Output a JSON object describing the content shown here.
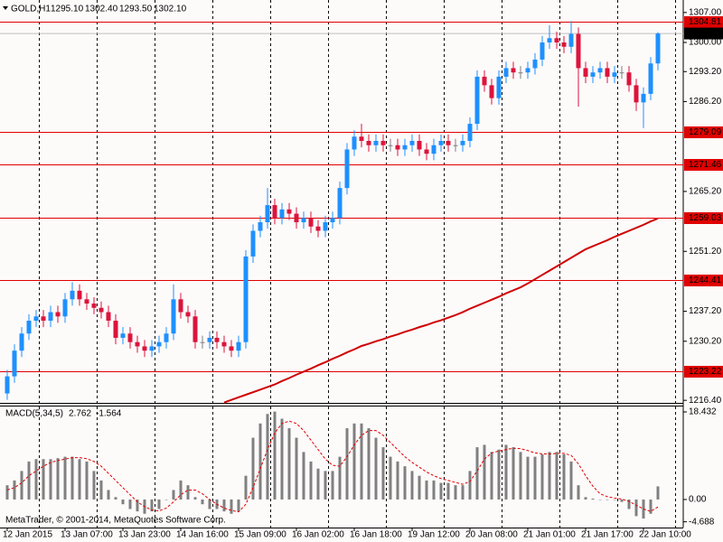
{
  "chart_data": [
    {
      "type": "candlestick",
      "title": "GOLD,H1",
      "title_values": [
        "1295.10",
        "1302.40",
        "1293.50",
        "1302.10"
      ],
      "categories": [
        "12 Jan 2015",
        null,
        null,
        null,
        null,
        null,
        null,
        null,
        "13 Jan 07:00",
        null,
        null,
        null,
        null,
        null,
        null,
        null,
        "13 Jan 23:00",
        null,
        null,
        null,
        null,
        null,
        null,
        null,
        "14 Jan 16:00",
        null,
        null,
        null,
        null,
        null,
        null,
        null,
        "15 Jan 09:00",
        null,
        null,
        null,
        null,
        null,
        null,
        null,
        "16 Jan 02:00",
        null,
        null,
        null,
        null,
        null,
        null,
        null,
        "16 Jan 18:00",
        null,
        null,
        null,
        null,
        null,
        null,
        null,
        "19 Jan 12:00",
        null,
        null,
        null,
        null,
        null,
        null,
        null,
        "20 Jan 08:00",
        null,
        null,
        null,
        null,
        null,
        null,
        null,
        "21 Jan 01:00",
        null,
        null,
        null,
        null,
        null,
        null,
        null,
        "21 Jan 17:00",
        null,
        null,
        null,
        null,
        null,
        null,
        null,
        "22 Jan 10:00",
        null,
        null
      ],
      "open": [
        1218,
        1222,
        1228,
        1232,
        1235,
        1236,
        1235,
        1237,
        1236,
        1240,
        1242,
        1240,
        1239,
        1238,
        1237,
        1235,
        1231,
        1232,
        1230,
        1229,
        1228,
        1229,
        1230,
        1232,
        1240,
        1237,
        1236,
        1230,
        1230,
        1231,
        1230,
        1229,
        1228,
        1230,
        1250,
        1256,
        1258,
        1262,
        1259,
        1261,
        1260,
        1258,
        1259,
        1257,
        1256,
        1258,
        1259,
        1266,
        1275,
        1278,
        1277,
        1276,
        1277,
        1276,
        1276,
        1275,
        1276,
        1277,
        1275,
        1274,
        1276,
        1277,
        1276,
        1276,
        1277,
        1281,
        1292,
        1290,
        1287,
        1292,
        1294,
        1293,
        1293,
        1294,
        1296,
        1300,
        1301,
        1300,
        1299,
        1302,
        1294,
        1292,
        1293,
        1294,
        1292,
        1293,
        1293,
        1290,
        1286,
        1288,
        1295.1
      ],
      "high": [
        1223.5,
        1229.5,
        1233.5,
        1236.5,
        1237.5,
        1237.5,
        1238.5,
        1238.5,
        1241.5,
        1244,
        1243.5,
        1241.5,
        1240.5,
        1239.5,
        1238.5,
        1236.5,
        1233.5,
        1233.5,
        1231.5,
        1230.5,
        1230.5,
        1231.5,
        1233.5,
        1243.5,
        1241.5,
        1238.5,
        1237.5,
        1231.5,
        1232.5,
        1232.5,
        1231.5,
        1230.5,
        1231.5,
        1251.5,
        1257.5,
        1259.5,
        1266,
        1263.5,
        1262.5,
        1262.5,
        1261.5,
        1260.5,
        1260.5,
        1258.5,
        1259.5,
        1260.5,
        1267.5,
        1276.5,
        1279.5,
        1281,
        1278.5,
        1278.5,
        1278.5,
        1277.5,
        1277.5,
        1277.5,
        1278.5,
        1278.5,
        1276.5,
        1277.5,
        1278.5,
        1278.5,
        1277.5,
        1278.5,
        1282.5,
        1293.5,
        1293.5,
        1291.5,
        1293.5,
        1295.5,
        1295.5,
        1294.5,
        1295.5,
        1297.5,
        1301.5,
        1304,
        1302.5,
        1301.5,
        1305,
        1303.5,
        1295.5,
        1294.5,
        1295.5,
        1295.5,
        1294.5,
        1294.5,
        1294.5,
        1291.5,
        1289.5,
        1296.6,
        1302.4
      ],
      "low": [
        1216.5,
        1220.5,
        1226.5,
        1230.5,
        1233.5,
        1233.5,
        1233.5,
        1234.5,
        1234.5,
        1238.5,
        1238.5,
        1237.5,
        1236.5,
        1235.5,
        1233.5,
        1229.5,
        1229.5,
        1228.5,
        1227.5,
        1226.5,
        1226.5,
        1227.5,
        1228.5,
        1230.5,
        1235.5,
        1234.5,
        1228.5,
        1228.5,
        1228.5,
        1228.5,
        1227.5,
        1226.5,
        1226.5,
        1228.5,
        1248.5,
        1254.5,
        1256.5,
        1257.5,
        1257.5,
        1258.5,
        1256.5,
        1256.5,
        1255.5,
        1254.5,
        1254.5,
        1256.5,
        1257.5,
        1264.5,
        1273.5,
        1275.5,
        1274.5,
        1274.5,
        1274.5,
        1274.5,
        1273.5,
        1273.5,
        1274.5,
        1273.5,
        1272.5,
        1272.5,
        1274.5,
        1274.5,
        1274.5,
        1274.5,
        1275.5,
        1279.5,
        1288.5,
        1285.5,
        1285.5,
        1290.5,
        1291.5,
        1291.5,
        1291.5,
        1292.5,
        1294.5,
        1298.5,
        1298.5,
        1297.5,
        1297.5,
        1285,
        1290.5,
        1290.5,
        1291.5,
        1290.5,
        1290.5,
        1291.5,
        1288.5,
        1284,
        1280,
        1286.5,
        1293.5
      ],
      "close": [
        1222,
        1228,
        1232,
        1235,
        1236,
        1235,
        1237,
        1236,
        1240,
        1242,
        1240,
        1239,
        1238,
        1237,
        1235,
        1231,
        1232,
        1230,
        1229,
        1228,
        1229,
        1230,
        1232,
        1240,
        1237,
        1236,
        1230,
        1230,
        1231,
        1230,
        1229,
        1228,
        1230,
        1250,
        1256,
        1258,
        1262,
        1259,
        1261,
        1260,
        1258,
        1259,
        1257,
        1256,
        1258,
        1259,
        1266,
        1275,
        1278,
        1277,
        1276,
        1277,
        1276,
        1276,
        1275,
        1276,
        1277,
        1275,
        1274,
        1276,
        1277,
        1276,
        1276,
        1277,
        1281,
        1292,
        1290,
        1287,
        1292,
        1294,
        1293,
        1293,
        1294,
        1296,
        1300,
        1301,
        1300,
        1299,
        1302,
        1294,
        1292,
        1293,
        1294,
        1292,
        1293,
        1293,
        1290,
        1286,
        1288,
        1295.1,
        1302.1
      ],
      "up_color": "#1e90ff",
      "down_color": "#dc143c",
      "ylim": [
        1215.8,
        1309.5
      ],
      "yticks": [
        {
          "value": 1307,
          "label": "1307.00"
        },
        {
          "value": 1300,
          "label": "1300.00"
        },
        {
          "value": 1293.2,
          "label": "1293.20"
        },
        {
          "value": 1286.2,
          "label": "1286.20"
        },
        {
          "value": 1265.2,
          "label": "1265.20"
        },
        {
          "value": 1251.2,
          "label": "1251.20"
        },
        {
          "value": 1237.2,
          "label": "1237.20"
        },
        {
          "value": 1230.2,
          "label": "1230.20"
        },
        {
          "value": 1216.4,
          "label": "1216.40"
        }
      ],
      "levels": [
        1304.81,
        1279.09,
        1271.46,
        1259.03,
        1244.41,
        1223.22
      ],
      "level_color": "#e00000",
      "current_price": {
        "value": 1302.1,
        "label": "1302.10"
      },
      "ma": {
        "color": "#d00000",
        "values": [
          null,
          null,
          null,
          null,
          null,
          null,
          null,
          null,
          null,
          null,
          null,
          null,
          null,
          null,
          null,
          null,
          null,
          null,
          null,
          null,
          null,
          null,
          null,
          null,
          null,
          null,
          null,
          null,
          null,
          null,
          1215.9,
          1216.5,
          1217.1,
          1217.7,
          1218.3,
          1218.9,
          1219.5,
          1220.1,
          1220.9,
          1221.6,
          1222.4,
          1223.1,
          1223.8,
          1224.6,
          1225.3,
          1226.1,
          1226.8,
          1227.6,
          1228.3,
          1229.1,
          1229.6,
          1230.2,
          1230.7,
          1231.3,
          1231.8,
          1232.4,
          1232.9,
          1233.5,
          1234.0,
          1234.6,
          1235.1,
          1235.7,
          1236.3,
          1237.0,
          1237.8,
          1238.5,
          1239.2,
          1239.9,
          1240.6,
          1241.4,
          1242.1,
          1242.8,
          1243.7,
          1244.7,
          1245.7,
          1246.7,
          1247.7,
          1248.7,
          1249.7,
          1250.7,
          1251.7,
          1252.4,
          1253.1,
          1253.8,
          1254.6,
          1255.3,
          1256.0,
          1256.7,
          1257.4,
          1258.2,
          1258.9
        ]
      }
    },
    {
      "type": "macd",
      "title": "MACD(5,34,5)",
      "footer": "MetaTrader, © 2001-2014, MetaQuotes Software Corp.",
      "series": [
        {
          "color": "#808080",
          "values": [
            3,
            4,
            6,
            8,
            8.5,
            8.5,
            8.5,
            8.7,
            9,
            9,
            8.5,
            8,
            6,
            4,
            2,
            0.5,
            -1,
            -2,
            -2.5,
            -3,
            -2.5,
            -2,
            0,
            2,
            4,
            3,
            0.5,
            -1,
            -2,
            -2,
            -2.5,
            -3,
            -2.5,
            5,
            13,
            16,
            18,
            18.5,
            17,
            15,
            13,
            10,
            8,
            6.5,
            6,
            6,
            9,
            15,
            16,
            16,
            15,
            13,
            11,
            9,
            8,
            7,
            6,
            5,
            4,
            4,
            3.5,
            3.5,
            3,
            3,
            6,
            11,
            11.5,
            10,
            10.5,
            11.5,
            11,
            10,
            9,
            9,
            9.5,
            10,
            10,
            9.5,
            8,
            3,
            0.5,
            0.2,
            0,
            0,
            0,
            -0.5,
            -2,
            -3.5,
            -4,
            -3,
            2.762
          ]
        },
        {
          "color": "#e00000",
          "values": [
            2,
            2.5,
            3.5,
            5,
            6,
            7,
            7.8,
            8.2,
            8.5,
            8.8,
            8.8,
            8.6,
            8,
            7,
            5.5,
            4,
            2.5,
            1,
            -0.5,
            -1.5,
            -2.2,
            -2.4,
            -1.8,
            -0.5,
            1,
            2,
            2,
            1.2,
            0,
            -1,
            -1.8,
            -2.3,
            -2.6,
            -1,
            2.5,
            6.5,
            10.5,
            14,
            16,
            16.5,
            16,
            14.5,
            12.5,
            10.5,
            8.5,
            7.2,
            7,
            9,
            11.5,
            13.5,
            14.5,
            14.5,
            13.5,
            12,
            10.5,
            9,
            7.8,
            6.8,
            5.8,
            5,
            4.4,
            4,
            3.6,
            3.2,
            3.8,
            6,
            8.5,
            9.8,
            10.2,
            10.5,
            10.8,
            10.7,
            10.3,
            9.8,
            9.6,
            9.6,
            9.7,
            9.7,
            9.3,
            7.5,
            5,
            2.8,
            1.2,
            0.6,
            0.3,
            0.1,
            -0.4,
            -1.2,
            -2,
            -2.5,
            -1.564
          ]
        }
      ],
      "ylim": [
        -5.9,
        19.76
      ],
      "yticks": [
        18.432,
        {
          "value": 0,
          "label": "0.00"
        },
        -4.688
      ]
    }
  ]
}
